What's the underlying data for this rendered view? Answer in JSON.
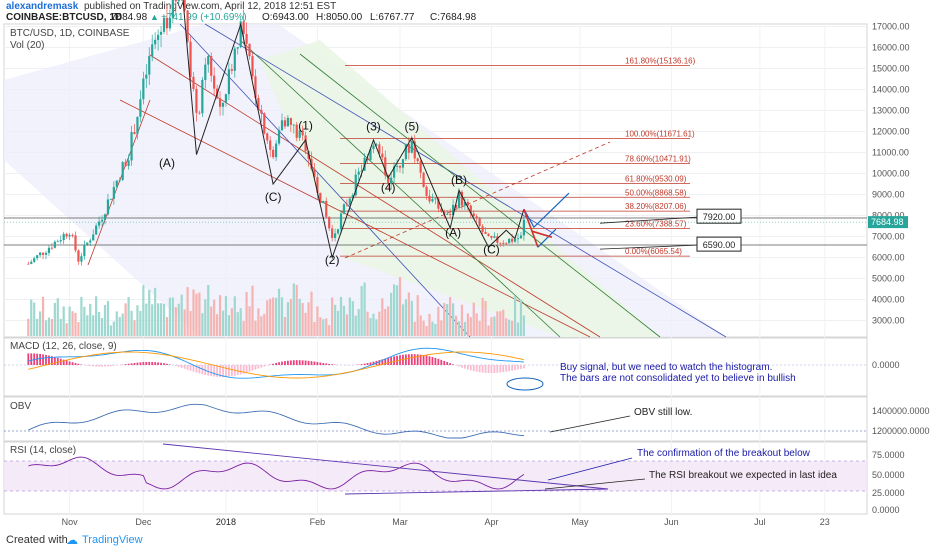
{
  "header": {
    "author": "alexandremask",
    "published": "published on TradingView.com, April 12, 2018 12:51 EST",
    "symbol": "COINBASE:BTCUSD, 1D",
    "last": "7684.98",
    "change": "+741.99 (+10.69%)",
    "open": "O:6943.00",
    "high": "H:8050.00",
    "low": "L:6767.77",
    "close": "C:7684.98"
  },
  "panes": {
    "main": {
      "title": "BTC/USD, 1D, COINBASE",
      "vol": "Vol (20)"
    },
    "macd": {
      "title": "MACD (12, 26, close, 9)"
    },
    "obv": {
      "title": "OBV"
    },
    "rsi": {
      "title": "RSI (14, close)"
    }
  },
  "colors": {
    "up": "#26a69a",
    "down": "#ef5350",
    "fib": "#c0392b",
    "channel": "#3f51b5",
    "green_line": "#2e7d32",
    "annot": "#1a1aa8"
  },
  "chart_data": {
    "type": "candlestick",
    "price_axis": [
      "17000.00",
      "16000.00",
      "15000.00",
      "14000.00",
      "13000.00",
      "12000.00",
      "11000.00",
      "10000.00",
      "9000.00",
      "8000.00",
      "7000.00",
      "6000.00",
      "5000.00",
      "4000.00",
      "3000.00"
    ],
    "time_axis": [
      "Nov",
      "Dec",
      "2018",
      "Feb",
      "Mar",
      "Apr",
      "May",
      "Jun",
      "Jul",
      "23"
    ],
    "last_price_tag": "7684.98",
    "fib_levels": [
      {
        "label": "161.80%(15136.16)",
        "price": 15136.16
      },
      {
        "label": "100.00%(11671.61)",
        "price": 11671.61
      },
      {
        "label": "78.60%(10471.91)",
        "price": 10471.91
      },
      {
        "label": "61.80%(9530.09)",
        "price": 9530.09
      },
      {
        "label": "50.00%(8868.58)",
        "price": 8868.58
      },
      {
        "label": "38.20%(8207.06)",
        "price": 8207.06
      },
      {
        "label": "23.60%(7388.57)",
        "price": 7388.57
      },
      {
        "label": "0.00%(6065.54)",
        "price": 6065.54
      }
    ],
    "price_boxes": [
      {
        "label": "7920.00",
        "price": 7920
      },
      {
        "label": "6590.00",
        "price": 6590
      }
    ],
    "wave_labels": [
      {
        "label": "(A)",
        "date": "2017-12-12",
        "price": 10300
      },
      {
        "label": "(C)",
        "date": "2018-01-17",
        "price": 8700
      },
      {
        "label": "(1)",
        "date": "2018-01-28",
        "price": 12100
      },
      {
        "label": "(2)",
        "date": "2018-02-06",
        "price": 5700
      },
      {
        "label": "(3)",
        "date": "2018-02-20",
        "price": 12050
      },
      {
        "label": "(4)",
        "date": "2018-02-25",
        "price": 9150
      },
      {
        "label": "(5)",
        "date": "2018-03-05",
        "price": 12050
      },
      {
        "label": "(A)",
        "date": "2018-03-19",
        "price": 7000
      },
      {
        "label": "(B)",
        "date": "2018-03-21",
        "price": 9500
      },
      {
        "label": "(C)",
        "date": "2018-04-01",
        "price": 6200
      }
    ],
    "macd_axis": [
      "0.0000"
    ],
    "obv_axis": [
      "1400000.0000",
      "1200000.0000"
    ],
    "rsi_axis": [
      "75.0000",
      "50.0000",
      "25.0000",
      "0.0000"
    ]
  },
  "annotations": {
    "macd_note_1": "Buy signal, but we need to watch the histogram.",
    "macd_note_2": "The bars are not consolidated yet to believe in bullish",
    "obv_note": "OBV still low.",
    "rsi_note_1": "The confirmation of the breakout below",
    "rsi_note_2": "The RSI breakout we expected in last idea"
  },
  "footer": {
    "created_with": "Created with",
    "brand": "TradingView"
  }
}
